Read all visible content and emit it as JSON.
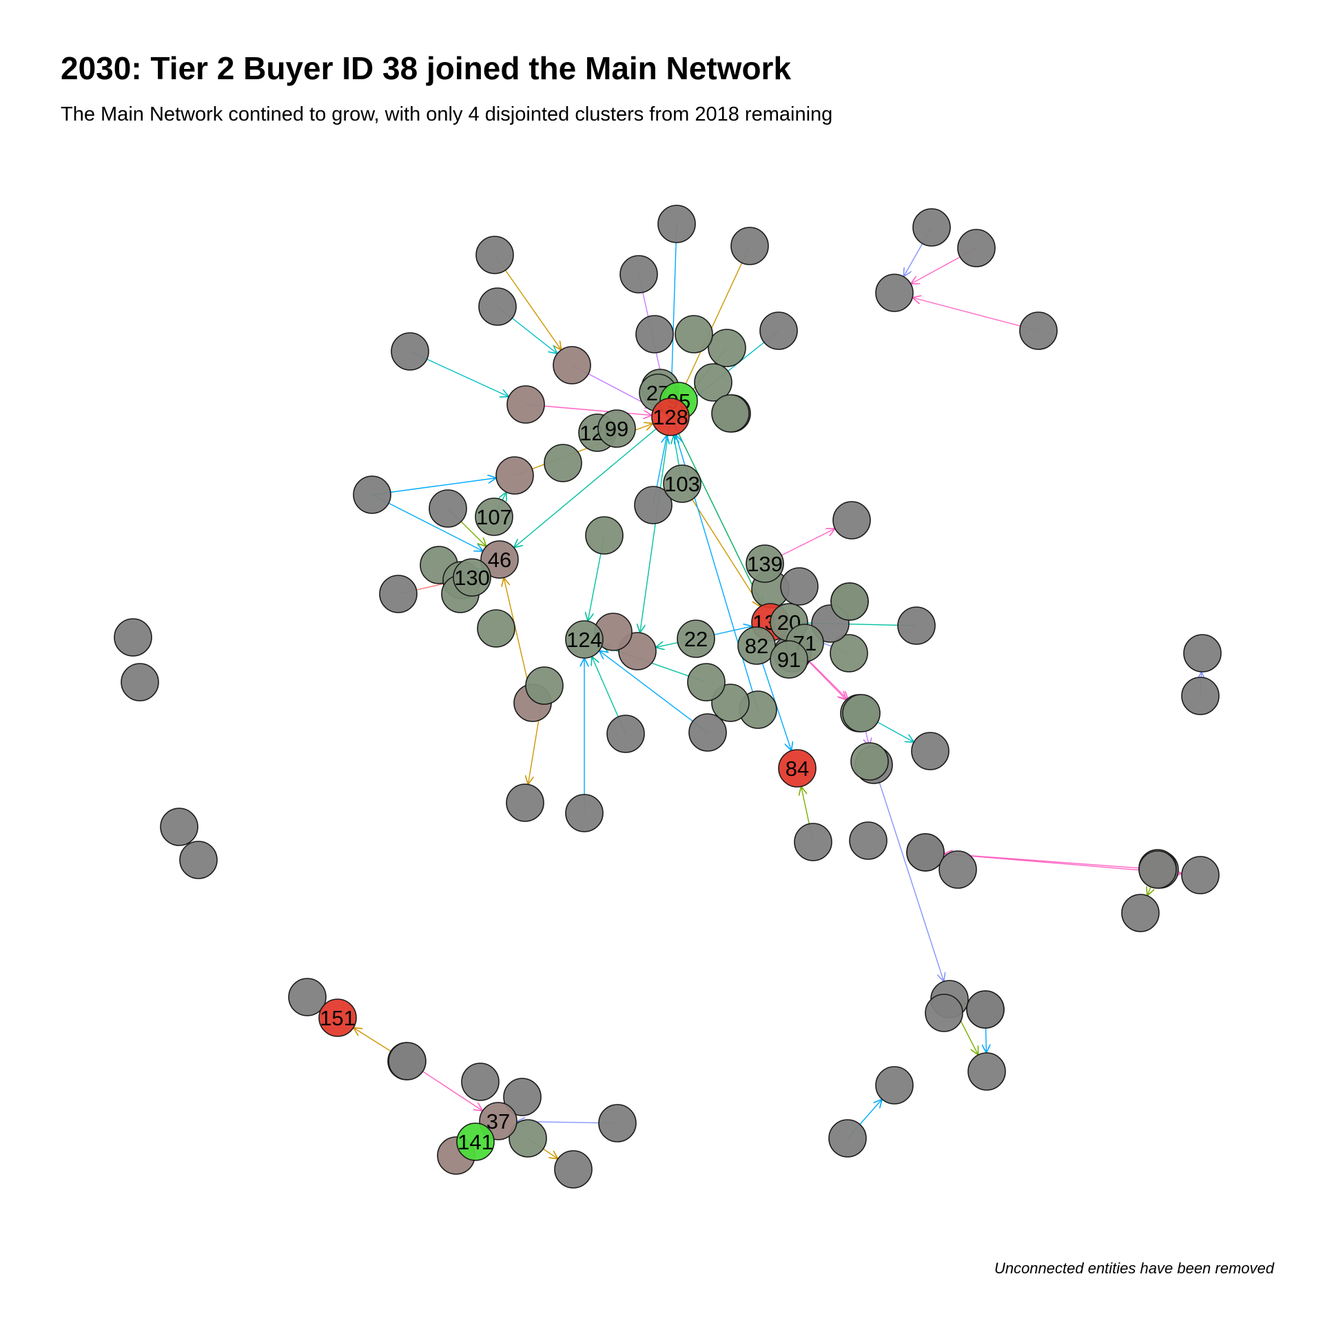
{
  "title": "2030: Tier 2 Buyer ID 38 joined the Main Network",
  "subtitle": "The Main Network contined to grow, with only 4 disjointed clusters from 2018 remaining",
  "caption": "Unconnected entities have been removed",
  "colors": {
    "node_default": "#808080",
    "node_green_gray": "#7f907a",
    "node_brown_gray": "#9a8480",
    "node_red": "#e33b2e",
    "node_bright_green": "#4cdc3a",
    "edge_palette": [
      "#00a9ff",
      "#00c19f",
      "#7cae00",
      "#cd9600",
      "#ff61c3",
      "#8494ff",
      "#c77cff",
      "#00be67",
      "#00bfc4",
      "#f8766d"
    ]
  },
  "graph": {
    "nodes": [
      {
        "id": "n1",
        "label": "",
        "color": "gray"
      },
      {
        "id": "n2",
        "label": "",
        "color": "gray"
      },
      {
        "id": "n3",
        "label": "",
        "color": "gray"
      },
      {
        "id": "n4",
        "label": "",
        "color": "gray"
      },
      {
        "id": "n5",
        "label": "",
        "color": "gray"
      },
      {
        "id": "n6",
        "label": "",
        "color": "gray"
      },
      {
        "id": "n7",
        "label": "",
        "color": "gray"
      },
      {
        "id": "n8",
        "label": "",
        "color": "greengray"
      },
      {
        "id": "n9",
        "label": "",
        "color": "gray"
      },
      {
        "id": "n10",
        "label": "",
        "color": "greengray"
      },
      {
        "id": "n11",
        "label": "",
        "color": "gray"
      },
      {
        "id": "n12",
        "label": "",
        "color": "gray"
      },
      {
        "id": "n13",
        "label": "",
        "color": "browngray"
      },
      {
        "id": "n14",
        "label": "",
        "color": "gray"
      },
      {
        "id": "n15",
        "label": "",
        "color": "browngray"
      },
      {
        "id": "n16",
        "label": "",
        "color": "gray"
      },
      {
        "id": "n17",
        "label": "",
        "color": "gray"
      },
      {
        "id": "n18",
        "label": "",
        "color": "greengray"
      },
      {
        "id": "n19",
        "label": "",
        "color": "greengray"
      },
      {
        "id": "n20",
        "label": "",
        "color": "greengray"
      },
      {
        "id": "n21",
        "label": "",
        "color": "greengray"
      },
      {
        "id": "n22",
        "label": "",
        "color": "gray"
      },
      {
        "id": "n23",
        "label": "",
        "color": "gray"
      },
      {
        "id": "n24",
        "label": "",
        "color": "gray"
      },
      {
        "id": "n25",
        "label": "",
        "color": "browngray"
      },
      {
        "id": "n26",
        "label": "",
        "color": "greengray"
      },
      {
        "id": "n27",
        "label": "",
        "color": "greengray"
      },
      {
        "id": "n28",
        "label": "",
        "color": "gray"
      },
      {
        "id": "n29",
        "label": "",
        "color": "greengray"
      },
      {
        "id": "n30",
        "label": "",
        "color": "greengray"
      },
      {
        "id": "n31",
        "label": "",
        "color": "greengray"
      },
      {
        "id": "n32",
        "label": "",
        "color": "browngray"
      },
      {
        "id": "n33",
        "label": "",
        "color": "greengray"
      },
      {
        "id": "n34",
        "label": "",
        "color": "browngray"
      },
      {
        "id": "n35",
        "label": "",
        "color": "greengray"
      },
      {
        "id": "n36",
        "label": "",
        "color": "greengray"
      },
      {
        "id": "n37",
        "label": "",
        "color": "greengray"
      },
      {
        "id": "n38",
        "label": "",
        "color": "gray"
      },
      {
        "id": "n39",
        "label": "",
        "color": "gray"
      },
      {
        "id": "n40",
        "label": "",
        "color": "gray"
      },
      {
        "id": "n41",
        "label": "",
        "color": "gray"
      },
      {
        "id": "n42",
        "label": "",
        "color": "gray"
      },
      {
        "id": "n43",
        "label": "",
        "color": "gray"
      },
      {
        "id": "n44",
        "label": "",
        "color": "greengray"
      },
      {
        "id": "n45",
        "label": "",
        "color": "greengray"
      },
      {
        "id": "n46",
        "label": "",
        "color": "greengray"
      },
      {
        "id": "n47",
        "label": "",
        "color": "gray"
      },
      {
        "id": "n48",
        "label": "",
        "color": "gray"
      },
      {
        "id": "n49",
        "label": "",
        "color": "gray"
      },
      {
        "id": "n50",
        "label": "",
        "color": "gray"
      },
      {
        "id": "n51",
        "label": "",
        "color": "gray"
      },
      {
        "id": "n52",
        "label": "",
        "color": "greengray"
      },
      {
        "id": "n53",
        "label": "",
        "color": "gray"
      },
      {
        "id": "n54",
        "label": "",
        "color": "gray"
      },
      {
        "id": "n55",
        "label": "",
        "color": "gray"
      },
      {
        "id": "n56",
        "label": "",
        "color": "gray"
      },
      {
        "id": "n57",
        "label": "",
        "color": "gray"
      },
      {
        "id": "n58",
        "label": "",
        "color": "gray"
      },
      {
        "id": "n59",
        "label": "",
        "color": "gray"
      },
      {
        "id": "n60",
        "label": "",
        "color": "gray"
      },
      {
        "id": "n61",
        "label": "",
        "color": "gray"
      },
      {
        "id": "n62",
        "label": "",
        "color": "gray"
      },
      {
        "id": "n63",
        "label": "",
        "color": "greengray"
      },
      {
        "id": "n64",
        "label": "",
        "color": "gray"
      },
      {
        "id": "n65",
        "label": "",
        "color": "gray"
      },
      {
        "id": "n66",
        "label": "",
        "color": "gray"
      },
      {
        "id": "n67",
        "label": "",
        "color": "gray"
      },
      {
        "id": "n68",
        "label": "",
        "color": "gray"
      },
      {
        "id": "n69",
        "label": "",
        "color": "gray"
      },
      {
        "id": "n70",
        "label": "",
        "color": "gray"
      },
      {
        "id": "n71",
        "label": "",
        "color": "gray"
      },
      {
        "id": "n72",
        "label": "",
        "color": "gray"
      },
      {
        "id": "n73",
        "label": "",
        "color": "gray"
      },
      {
        "id": "n74",
        "label": "",
        "color": "greengray"
      },
      {
        "id": "n75",
        "label": "",
        "color": "gray"
      },
      {
        "id": "n76",
        "label": "",
        "color": "gray"
      },
      {
        "id": "n77",
        "label": "",
        "color": "gray"
      },
      {
        "id": "n78",
        "label": "",
        "color": "gray"
      },
      {
        "id": "n79",
        "label": "",
        "color": "gray"
      },
      {
        "id": "n80",
        "label": "",
        "color": "gray"
      },
      {
        "id": "n81",
        "label": "",
        "color": "gray"
      },
      {
        "id": "n82",
        "label": "",
        "color": "greengray"
      },
      {
        "id": "n83",
        "label": "",
        "color": "browngray"
      },
      {
        "id": "n84",
        "label": "",
        "color": "greengray"
      },
      {
        "id": "n85",
        "label": "",
        "color": "gray"
      },
      {
        "id": "n86",
        "label": "",
        "color": "browngray"
      },
      {
        "id": "n87",
        "label": "",
        "color": "gray"
      },
      {
        "id": "n88",
        "label": "",
        "color": "gray"
      },
      {
        "id": "l27",
        "label": "27",
        "color": "greengray"
      },
      {
        "id": "l95",
        "label": "95",
        "color": "brightgreen"
      },
      {
        "id": "l128",
        "label": "128",
        "color": "red"
      },
      {
        "id": "l129",
        "label": "129",
        "color": "greengray"
      },
      {
        "id": "l99",
        "label": "99",
        "color": "greengray"
      },
      {
        "id": "l103",
        "label": "103",
        "color": "greengray"
      },
      {
        "id": "l107",
        "label": "107",
        "color": "greengray"
      },
      {
        "id": "l46",
        "label": "46",
        "color": "browngray"
      },
      {
        "id": "l130",
        "label": "130",
        "color": "greengray"
      },
      {
        "id": "l139",
        "label": "139",
        "color": "greengray"
      },
      {
        "id": "l132",
        "label": "132",
        "color": "red"
      },
      {
        "id": "l20",
        "label": "20",
        "color": "greengray"
      },
      {
        "id": "l71",
        "label": "71",
        "color": "greengray"
      },
      {
        "id": "l82",
        "label": "82",
        "color": "greengray"
      },
      {
        "id": "l91",
        "label": "91",
        "color": "greengray"
      },
      {
        "id": "l124",
        "label": "124",
        "color": "greengray"
      },
      {
        "id": "l22",
        "label": "22",
        "color": "greengray"
      },
      {
        "id": "l84",
        "label": "84",
        "color": "red"
      },
      {
        "id": "l151",
        "label": "151",
        "color": "red"
      },
      {
        "id": "l37",
        "label": "37",
        "color": "browngray"
      },
      {
        "id": "l141",
        "label": "141",
        "color": "brightgreen"
      }
    ],
    "edges": [
      {
        "from": "n1",
        "to": "l128",
        "color": 0
      },
      {
        "from": "n2",
        "to": "n13",
        "color": 3
      },
      {
        "from": "n3",
        "to": "l128",
        "color": 3
      },
      {
        "from": "n4",
        "to": "n13",
        "color": 8
      },
      {
        "from": "n5",
        "to": "l128",
        "color": 6
      },
      {
        "from": "n6",
        "to": "n15",
        "color": 8
      },
      {
        "from": "n7",
        "to": "l128",
        "color": 8
      },
      {
        "from": "n8",
        "to": "l128",
        "color": 2
      },
      {
        "from": "n9",
        "to": "n14",
        "color": 5
      },
      {
        "from": "n16",
        "to": "n14",
        "color": 4
      },
      {
        "from": "n17",
        "to": "n14",
        "color": 4
      },
      {
        "from": "n13",
        "to": "l128",
        "color": 6
      },
      {
        "from": "n15",
        "to": "l128",
        "color": 4
      },
      {
        "from": "n25",
        "to": "l128",
        "color": 3
      },
      {
        "from": "n22",
        "to": "l46",
        "color": 0
      },
      {
        "from": "n22",
        "to": "n25",
        "color": 0
      },
      {
        "from": "n23",
        "to": "l46",
        "color": 2
      },
      {
        "from": "n24",
        "to": "l130",
        "color": 9
      },
      {
        "from": "l103",
        "to": "l128",
        "color": 1
      },
      {
        "from": "l107",
        "to": "n25",
        "color": 1
      },
      {
        "from": "l128",
        "to": "l46",
        "color": 1
      },
      {
        "from": "n27",
        "to": "l46",
        "color": 1
      },
      {
        "from": "l128",
        "to": "l132",
        "color": 4
      },
      {
        "from": "l128",
        "to": "l132",
        "color": 7
      },
      {
        "from": "l128",
        "to": "n32",
        "color": 1
      },
      {
        "from": "n28",
        "to": "l128",
        "color": 0
      },
      {
        "from": "l103",
        "to": "l132",
        "color": 3
      },
      {
        "from": "l22",
        "to": "l132",
        "color": 0
      },
      {
        "from": "l22",
        "to": "n32",
        "color": 1
      },
      {
        "from": "n29",
        "to": "l124",
        "color": 1
      },
      {
        "from": "n33",
        "to": "l128",
        "color": 0
      },
      {
        "from": "n34",
        "to": "l46",
        "color": 3
      },
      {
        "from": "n36",
        "to": "n85",
        "color": 3
      },
      {
        "from": "n37",
        "to": "l124",
        "color": 1
      },
      {
        "from": "n38",
        "to": "l124",
        "color": 0
      },
      {
        "from": "n39",
        "to": "l124",
        "color": 0
      },
      {
        "from": "n40",
        "to": "l124",
        "color": 1
      },
      {
        "from": "l139",
        "to": "n41",
        "color": 4
      },
      {
        "from": "n42",
        "to": "l132",
        "color": 1
      },
      {
        "from": "n44",
        "to": "l132",
        "color": 5
      },
      {
        "from": "l132",
        "to": "n45",
        "color": 4
      },
      {
        "from": "n46",
        "to": "n47",
        "color": 8
      },
      {
        "from": "n46",
        "to": "n50",
        "color": 6
      },
      {
        "from": "n51",
        "to": "l84",
        "color": 2
      },
      {
        "from": "l82",
        "to": "l84",
        "color": 0
      },
      {
        "from": "l132",
        "to": "n46",
        "color": 4
      },
      {
        "from": "n53",
        "to": "n54",
        "color": 5
      },
      {
        "from": "n53",
        "to": "n55",
        "color": 4
      },
      {
        "from": "n56",
        "to": "n54",
        "color": 4
      },
      {
        "from": "n60",
        "to": "n59",
        "color": 0
      },
      {
        "from": "n62",
        "to": "n61",
        "color": 5
      },
      {
        "from": "n65",
        "to": "n64",
        "color": 2
      },
      {
        "from": "n50",
        "to": "n66",
        "color": 5
      },
      {
        "from": "n66",
        "to": "n67",
        "color": 2
      },
      {
        "from": "n66",
        "to": "n68",
        "color": 2
      },
      {
        "from": "n69",
        "to": "n67",
        "color": 0
      },
      {
        "from": "n72",
        "to": "l151",
        "color": 3
      },
      {
        "from": "n73",
        "to": "l37",
        "color": 4
      },
      {
        "from": "n75",
        "to": "l37",
        "color": 5
      },
      {
        "from": "n74",
        "to": "n76",
        "color": 3
      }
    ]
  }
}
